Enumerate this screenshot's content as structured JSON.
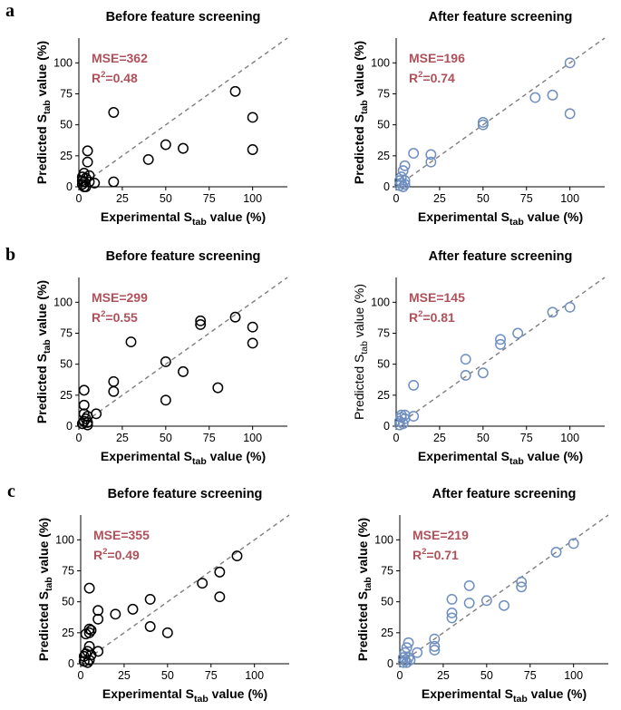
{
  "panels": [
    {
      "label": "a"
    },
    {
      "label": "b"
    },
    {
      "label": "c"
    }
  ],
  "axis_text": {
    "x_prefix": "Experimental S",
    "x_sub": "tab",
    "x_suffix": " value (%)",
    "y_prefix": "Predicted S",
    "y_sub": "tab",
    "y_suffix": " value (%)",
    "r2_prefix": "R",
    "r2_sup": "2"
  },
  "colors": {
    "before_marker": "#000000",
    "after_marker": "#6f8fc0",
    "metric_text": "#b0505a",
    "diagonal": "#7f7f7f"
  },
  "chart_data": [
    {
      "id": "a-before",
      "panel": "a",
      "type": "scatter",
      "title": "Before feature screening",
      "mse": "MSE=362",
      "r2": "=0.48",
      "xlim": [
        0,
        120
      ],
      "ylim": [
        0,
        120
      ],
      "xticks": [
        "0",
        "25",
        "50",
        "75",
        "100"
      ],
      "yticks": [
        "0",
        "25",
        "50",
        "75",
        "100"
      ],
      "diagonal": true,
      "marker": "open-circle-black",
      "points": [
        [
          2,
          2
        ],
        [
          3,
          4
        ],
        [
          2,
          8
        ],
        [
          3,
          11
        ],
        [
          4,
          7
        ],
        [
          4,
          0
        ],
        [
          5,
          20
        ],
        [
          5,
          29
        ],
        [
          6,
          9
        ],
        [
          6,
          4
        ],
        [
          9,
          3
        ],
        [
          3,
          0
        ],
        [
          2,
          5
        ],
        [
          20,
          4
        ],
        [
          20,
          60
        ],
        [
          40,
          22
        ],
        [
          50,
          34
        ],
        [
          60,
          31
        ],
        [
          90,
          77
        ],
        [
          100,
          56
        ],
        [
          100,
          30
        ]
      ]
    },
    {
      "id": "a-after",
      "panel": "a",
      "type": "scatter",
      "title": "After feature screening",
      "mse": "MSE=196",
      "r2": "=0.74",
      "xlim": [
        0,
        120
      ],
      "ylim": [
        0,
        120
      ],
      "xticks": [
        "0",
        "25",
        "50",
        "75",
        "100"
      ],
      "yticks": [
        "0",
        "25",
        "50",
        "75",
        "100"
      ],
      "diagonal": true,
      "marker": "open-circle-blue",
      "points": [
        [
          2,
          1
        ],
        [
          2,
          5
        ],
        [
          3,
          3
        ],
        [
          3,
          8
        ],
        [
          4,
          13
        ],
        [
          4,
          0
        ],
        [
          5,
          5
        ],
        [
          5,
          17
        ],
        [
          5,
          2
        ],
        [
          10,
          27
        ],
        [
          20,
          26
        ],
        [
          20,
          20
        ],
        [
          50,
          52
        ],
        [
          50,
          50
        ],
        [
          80,
          72
        ],
        [
          90,
          74
        ],
        [
          100,
          100
        ],
        [
          100,
          59
        ]
      ]
    },
    {
      "id": "b-before",
      "panel": "b",
      "type": "scatter",
      "title": "Before feature screening",
      "mse": "MSE=299",
      "r2": "=0.55",
      "xlim": [
        0,
        120
      ],
      "ylim": [
        0,
        120
      ],
      "xticks": [
        "0",
        "25",
        "50",
        "75",
        "100"
      ],
      "yticks": [
        "0",
        "25",
        "50",
        "75",
        "100"
      ],
      "diagonal": true,
      "marker": "open-circle-black",
      "points": [
        [
          2,
          2
        ],
        [
          3,
          4
        ],
        [
          3,
          10
        ],
        [
          3,
          17
        ],
        [
          3,
          29
        ],
        [
          4,
          6
        ],
        [
          5,
          1
        ],
        [
          5,
          3
        ],
        [
          5,
          8
        ],
        [
          10,
          10
        ],
        [
          20,
          28
        ],
        [
          20,
          36
        ],
        [
          30,
          68
        ],
        [
          50,
          52
        ],
        [
          50,
          21
        ],
        [
          60,
          44
        ],
        [
          70,
          82
        ],
        [
          70,
          85
        ],
        [
          80,
          31
        ],
        [
          90,
          88
        ],
        [
          100,
          80
        ],
        [
          100,
          67
        ]
      ]
    },
    {
      "id": "b-after",
      "panel": "b",
      "type": "scatter",
      "title": "After feature screening",
      "mse": "MSE=145",
      "r2": "=0.81",
      "xlim": [
        0,
        120
      ],
      "ylim": [
        0,
        120
      ],
      "xticks": [
        "0",
        "25",
        "50",
        "75",
        "100"
      ],
      "yticks": [
        "0",
        "25",
        "50",
        "75",
        "100"
      ],
      "diagonal": true,
      "marker": "open-circle-blue",
      "points": [
        [
          2,
          1
        ],
        [
          2,
          4
        ],
        [
          3,
          9
        ],
        [
          3,
          7
        ],
        [
          4,
          2
        ],
        [
          5,
          6
        ],
        [
          5,
          9
        ],
        [
          10,
          33
        ],
        [
          10,
          8
        ],
        [
          40,
          54
        ],
        [
          40,
          41
        ],
        [
          50,
          43
        ],
        [
          60,
          70
        ],
        [
          60,
          66
        ],
        [
          70,
          75
        ],
        [
          90,
          92
        ],
        [
          100,
          96
        ]
      ]
    },
    {
      "id": "c-before",
      "panel": "c",
      "type": "scatter",
      "title": "Before feature screening",
      "mse": "MSE=355",
      "r2": "=0.49",
      "xlim": [
        0,
        120
      ],
      "ylim": [
        0,
        120
      ],
      "xticks": [
        "0",
        "25",
        "50",
        "75",
        "100"
      ],
      "yticks": [
        "0",
        "25",
        "50",
        "75",
        "100"
      ],
      "diagonal": true,
      "marker": "open-circle-black",
      "points": [
        [
          2,
          2
        ],
        [
          2,
          6
        ],
        [
          3,
          8
        ],
        [
          3,
          24
        ],
        [
          4,
          1
        ],
        [
          4,
          10
        ],
        [
          5,
          3
        ],
        [
          5,
          14
        ],
        [
          5,
          25
        ],
        [
          5,
          28
        ],
        [
          5,
          61
        ],
        [
          6,
          7
        ],
        [
          6,
          27
        ],
        [
          10,
          36
        ],
        [
          10,
          43
        ],
        [
          10,
          10
        ],
        [
          20,
          40
        ],
        [
          30,
          44
        ],
        [
          40,
          52
        ],
        [
          40,
          30
        ],
        [
          50,
          25
        ],
        [
          70,
          65
        ],
        [
          80,
          74
        ],
        [
          80,
          54
        ],
        [
          90,
          87
        ]
      ]
    },
    {
      "id": "c-after",
      "panel": "c",
      "type": "scatter",
      "title": "After feature screening",
      "mse": "MSE=219",
      "r2": "=0.71",
      "xlim": [
        0,
        120
      ],
      "ylim": [
        0,
        120
      ],
      "xticks": [
        "0",
        "25",
        "50",
        "75",
        "100"
      ],
      "yticks": [
        "0",
        "25",
        "50",
        "75",
        "100"
      ],
      "diagonal": true,
      "marker": "open-circle-blue",
      "points": [
        [
          2,
          1
        ],
        [
          2,
          5
        ],
        [
          3,
          3
        ],
        [
          3,
          9
        ],
        [
          4,
          13
        ],
        [
          4,
          1
        ],
        [
          5,
          5
        ],
        [
          5,
          17
        ],
        [
          6,
          3
        ],
        [
          10,
          9
        ],
        [
          20,
          20
        ],
        [
          20,
          14
        ],
        [
          20,
          11
        ],
        [
          30,
          52
        ],
        [
          30,
          41
        ],
        [
          30,
          37
        ],
        [
          40,
          63
        ],
        [
          40,
          49
        ],
        [
          50,
          51
        ],
        [
          60,
          47
        ],
        [
          70,
          66
        ],
        [
          70,
          62
        ],
        [
          90,
          90
        ],
        [
          100,
          97
        ]
      ]
    }
  ]
}
